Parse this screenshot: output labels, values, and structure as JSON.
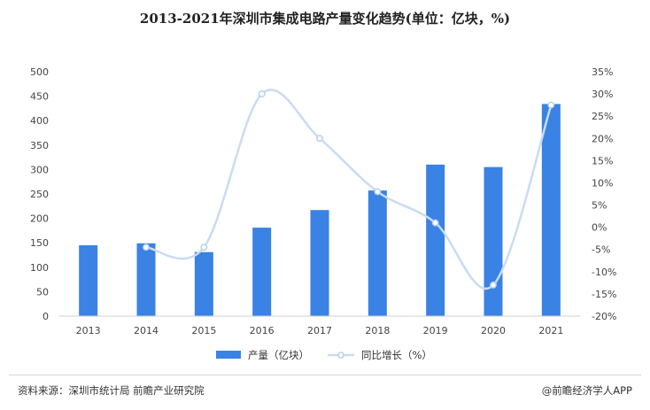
{
  "chart_data": {
    "type": "bar",
    "title": "2013-2021年深圳市集成电路产量变化趋势(单位：亿块，%)",
    "categories": [
      "2013",
      "2014",
      "2015",
      "2016",
      "2017",
      "2018",
      "2019",
      "2020",
      "2021"
    ],
    "series": [
      {
        "name": "产量（亿块）",
        "type": "bar",
        "axis": "left",
        "values": [
          145,
          149,
          131,
          181,
          217,
          257,
          310,
          305,
          434
        ]
      },
      {
        "name": "同比增长（%）",
        "type": "line",
        "axis": "right",
        "values": [
          null,
          -4.5,
          -4.5,
          30,
          20,
          8,
          1,
          -13,
          27.5
        ]
      }
    ],
    "left_axis": {
      "ylim": [
        0,
        500
      ],
      "ticks": [
        "0",
        "50",
        "100",
        "150",
        "200",
        "250",
        "300",
        "350",
        "400",
        "450",
        "500"
      ]
    },
    "right_axis": {
      "ylim": [
        -20,
        35
      ],
      "ticks": [
        "-20%",
        "-15%",
        "-10%",
        "-5%",
        "0%",
        "5%",
        "10%",
        "15%",
        "20%",
        "25%",
        "30%",
        "35%"
      ]
    },
    "grid": false,
    "legend_position": "bottom-center",
    "colors": {
      "bar": "#3a82e4",
      "line": "#c9dcf2",
      "marker": "#b8cfec"
    }
  },
  "source": "资料来源：深圳市统计局 前瞻产业研究院",
  "brand": "@前瞻经济学人APP"
}
